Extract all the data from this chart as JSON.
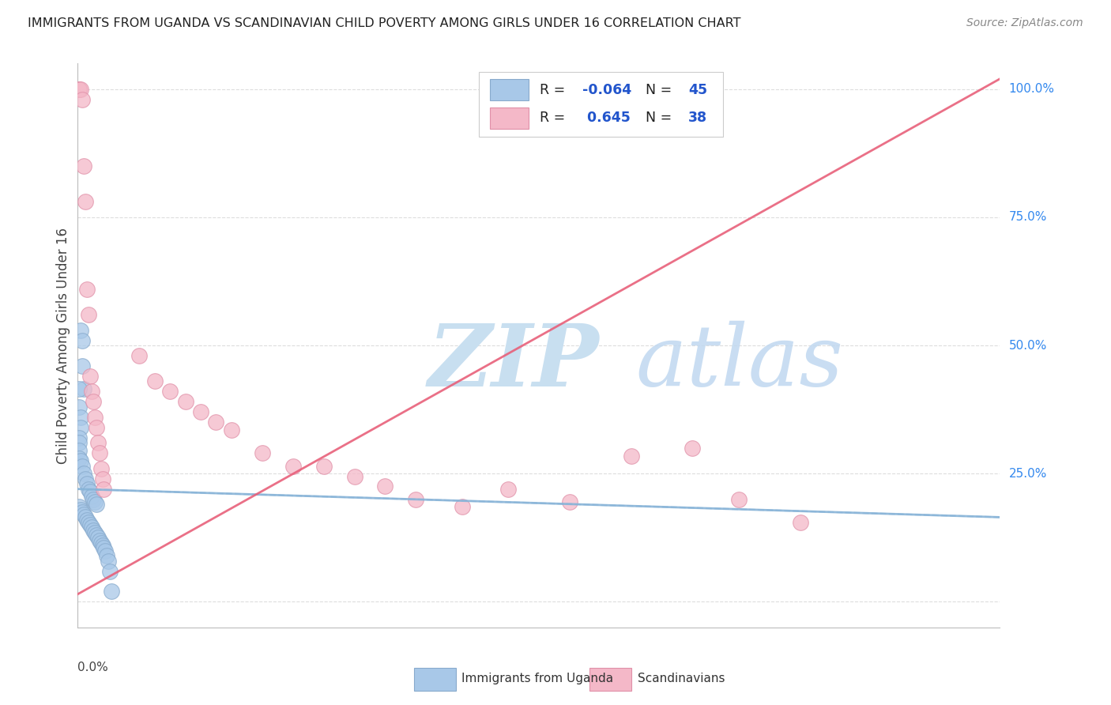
{
  "title": "IMMIGRANTS FROM UGANDA VS SCANDINAVIAN CHILD POVERTY AMONG GIRLS UNDER 16 CORRELATION CHART",
  "source": "Source: ZipAtlas.com",
  "ylabel": "Child Poverty Among Girls Under 16",
  "blue_color": "#a8c8e8",
  "pink_color": "#f4b8c8",
  "blue_edge_color": "#88aacc",
  "pink_edge_color": "#e090a8",
  "blue_line_color": "#88b4d8",
  "pink_line_color": "#e8607a",
  "legend_blue_label": "Immigrants from Uganda",
  "legend_pink_label": "Scandinavians",
  "watermark_zip_color": "#c8dff0",
  "watermark_atlas_color": "#c0d8f0",
  "xlim": [
    0.0,
    0.6
  ],
  "ylim": [
    -0.05,
    1.05
  ],
  "yticks": [
    0.0,
    0.25,
    0.5,
    0.75,
    1.0
  ],
  "ytick_labels": [
    "",
    "25.0%",
    "50.0%",
    "75.0%",
    "100.0%"
  ],
  "grid_color": "#dddddd",
  "blue_scatter_x": [
    0.002,
    0.003,
    0.003,
    0.004,
    0.001,
    0.001,
    0.002,
    0.002,
    0.001,
    0.001,
    0.001,
    0.001,
    0.002,
    0.003,
    0.004,
    0.005,
    0.006,
    0.007,
    0.008,
    0.009,
    0.01,
    0.011,
    0.012,
    0.001,
    0.002,
    0.003,
    0.004,
    0.005,
    0.006,
    0.007,
    0.008,
    0.009,
    0.01,
    0.011,
    0.012,
    0.013,
    0.014,
    0.015,
    0.016,
    0.017,
    0.018,
    0.019,
    0.02,
    0.021,
    0.022
  ],
  "blue_scatter_y": [
    0.53,
    0.51,
    0.46,
    0.415,
    0.415,
    0.38,
    0.36,
    0.34,
    0.32,
    0.31,
    0.295,
    0.28,
    0.275,
    0.265,
    0.25,
    0.24,
    0.23,
    0.22,
    0.215,
    0.205,
    0.2,
    0.195,
    0.19,
    0.185,
    0.18,
    0.175,
    0.17,
    0.165,
    0.16,
    0.155,
    0.15,
    0.145,
    0.14,
    0.135,
    0.13,
    0.125,
    0.12,
    0.115,
    0.11,
    0.105,
    0.1,
    0.09,
    0.08,
    0.06,
    0.02
  ],
  "pink_scatter_x": [
    0.001,
    0.001,
    0.002,
    0.003,
    0.004,
    0.005,
    0.006,
    0.007,
    0.008,
    0.009,
    0.01,
    0.011,
    0.012,
    0.013,
    0.014,
    0.015,
    0.016,
    0.017,
    0.04,
    0.05,
    0.06,
    0.07,
    0.08,
    0.09,
    0.1,
    0.12,
    0.14,
    0.16,
    0.18,
    0.2,
    0.22,
    0.25,
    0.28,
    0.32,
    0.36,
    0.4,
    0.43,
    0.47
  ],
  "pink_scatter_y": [
    1.0,
    1.0,
    1.0,
    0.98,
    0.85,
    0.78,
    0.61,
    0.56,
    0.44,
    0.41,
    0.39,
    0.36,
    0.34,
    0.31,
    0.29,
    0.26,
    0.24,
    0.22,
    0.48,
    0.43,
    0.41,
    0.39,
    0.37,
    0.35,
    0.335,
    0.29,
    0.265,
    0.265,
    0.245,
    0.225,
    0.2,
    0.185,
    0.22,
    0.195,
    0.285,
    0.3,
    0.2,
    0.155
  ],
  "blue_trend_x0": 0.0,
  "blue_trend_x1": 0.6,
  "blue_trend_y0": 0.22,
  "blue_trend_y1": 0.165,
  "pink_trend_x0": 0.0,
  "pink_trend_x1": 0.6,
  "pink_trend_y0": 0.015,
  "pink_trend_y1": 1.02
}
